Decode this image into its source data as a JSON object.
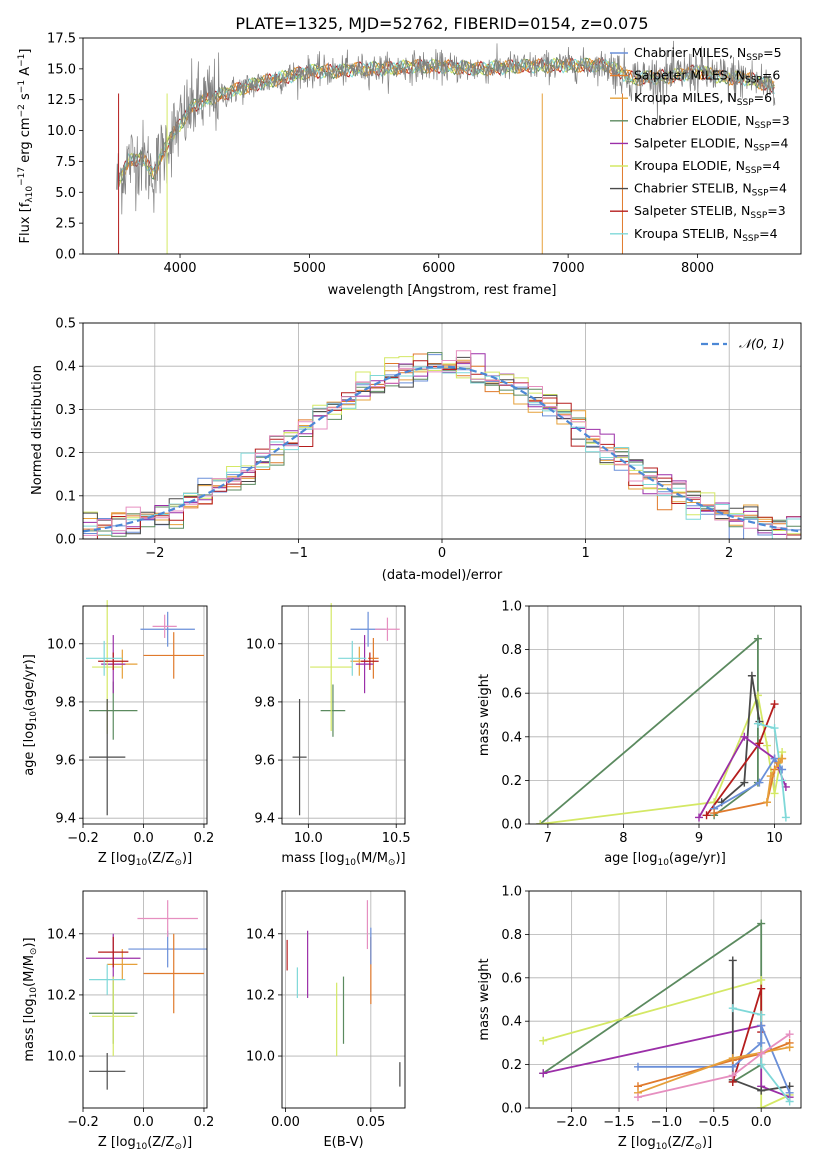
{
  "colors": {
    "chabrier_miles": "#6a8fd9",
    "salpeter_miles": "#e07a2c",
    "kroupa_miles": "#e6a03a",
    "chabrier_elodie": "#5b8a5f",
    "salpeter_elodie": "#9b2fa8",
    "kroupa_elodie": "#d4e865",
    "chabrier_stelib": "#4a4a4a",
    "salpeter_stelib": "#b51d1d",
    "kroupa_stelib": "#7fd8d8",
    "pink": "#e68fc0",
    "normal": "#4c88d6",
    "spectrum": "#808080",
    "grid": "#b0b0b0"
  },
  "chart_data": [
    {
      "id": "spectrum",
      "type": "line",
      "title": "PLATE=1325, MJD=52762, FIBERID=0154, z=0.075",
      "xlabel": "wavelength [Angstrom, rest frame]",
      "ylabel_parts": [
        "Flux [f",
        "λ",
        "10",
        "−17",
        " erg cm",
        "−2",
        " s",
        "−1",
        " A",
        "−1",
        "]"
      ],
      "xlim": [
        3250,
        8800
      ],
      "ylim": [
        0,
        17.5
      ],
      "xticks": [
        4000,
        5000,
        6000,
        7000,
        8000
      ],
      "yticks": [
        0.0,
        2.5,
        5.0,
        7.5,
        10.0,
        12.5,
        15.0,
        17.5
      ],
      "x_tick_labels": [
        "4000",
        "5000",
        "6000",
        "7000",
        "8000"
      ],
      "y_tick_labels": [
        "0.0",
        "2.5",
        "5.0",
        "7.5",
        "10.0",
        "12.5",
        "15.0",
        "17.5"
      ],
      "continuum": {
        "x": [
          3500,
          3600,
          3700,
          3800,
          3900,
          4000,
          4100,
          4200,
          4400,
          4600,
          4800,
          5000,
          5200,
          5400,
          5600,
          5800,
          6000,
          6300,
          6600,
          7000,
          7300,
          7500,
          7800,
          8000,
          8200,
          8400,
          8600
        ],
        "y": [
          5.5,
          7.5,
          7.8,
          6.5,
          9.0,
          10.5,
          12.0,
          12.5,
          13.2,
          13.8,
          14.3,
          14.8,
          14.8,
          15.0,
          15.0,
          15.2,
          15.2,
          15.0,
          15.2,
          15.3,
          15.3,
          14.2,
          14.4,
          14.8,
          14.3,
          14.2,
          13.5
        ]
      },
      "legend": [
        {
          "name": "Chabrier MILES",
          "n": "5",
          "color_key": "chabrier_miles"
        },
        {
          "name": "Salpeter MILES",
          "n": "6",
          "color_key": "salpeter_miles"
        },
        {
          "name": "Kroupa MILES",
          "n": "6",
          "color_key": "kroupa_miles"
        },
        {
          "name": "Chabrier ELODIE",
          "n": "3",
          "color_key": "chabrier_elodie"
        },
        {
          "name": "Salpeter ELODIE",
          "n": "4",
          "color_key": "salpeter_elodie"
        },
        {
          "name": "Kroupa ELODIE",
          "n": "4",
          "color_key": "kroupa_elodie"
        },
        {
          "name": "Chabrier STELIB",
          "n": "4",
          "color_key": "chabrier_stelib"
        },
        {
          "name": "Salpeter STELIB",
          "n": "3",
          "color_key": "salpeter_stelib"
        },
        {
          "name": "Kroupa STELIB",
          "n": "4",
          "color_key": "kroupa_stelib"
        }
      ],
      "nssp_prefix": "N",
      "nssp_sub": "SSP"
    },
    {
      "id": "residuals",
      "type": "histogram",
      "xlabel": "(data-model)/error",
      "ylabel": "Normed distribution",
      "xlim": [
        -2.5,
        2.5
      ],
      "ylim": [
        0,
        0.5
      ],
      "xticks": [
        -2,
        -1,
        0,
        1,
        2
      ],
      "yticks": [
        0.0,
        0.1,
        0.2,
        0.3,
        0.4,
        0.5
      ],
      "x_tick_labels": [
        "−2",
        "−1",
        "0",
        "1",
        "2"
      ],
      "y_tick_labels": [
        "0.0",
        "0.1",
        "0.2",
        "0.3",
        "0.4",
        "0.5"
      ],
      "bin_width": 0.1,
      "legend_label": "𝒩(0, 1)"
    },
    {
      "id": "age_vs_Z",
      "type": "errorbar",
      "xlabel_parts": [
        "Z [log",
        "10",
        "(Z/Z",
        "⊙",
        ")]"
      ],
      "ylabel_parts": [
        "age  [log",
        "10",
        "(age/yr)]"
      ],
      "xlim": [
        -0.2,
        0.21
      ],
      "ylim": [
        9.38,
        10.13
      ],
      "xticks": [
        -0.2,
        0.0,
        0.2
      ],
      "yticks": [
        9.4,
        9.6,
        9.8,
        10.0
      ],
      "x_tick_labels": [
        "−0.2",
        "0.0",
        "0.2"
      ],
      "y_tick_labels": [
        "9.4",
        "9.6",
        "9.8",
        "10.0"
      ],
      "points": [
        {
          "c": "chabrier_miles",
          "x": 0.08,
          "xe": 0.09,
          "y": 10.05,
          "ye": 0.06
        },
        {
          "c": "salpeter_miles",
          "x": 0.1,
          "xe": 0.1,
          "y": 9.96,
          "ye": 0.08
        },
        {
          "c": "kroupa_miles",
          "x": -0.07,
          "xe": 0.05,
          "y": 9.93,
          "ye": 0.05
        },
        {
          "c": "chabrier_elodie",
          "x": -0.1,
          "xe": 0.08,
          "y": 9.77,
          "ye": 0.1
        },
        {
          "c": "salpeter_elodie",
          "x": -0.1,
          "xe": 0.04,
          "y": 9.93,
          "ye": 0.1
        },
        {
          "c": "kroupa_elodie",
          "x": -0.12,
          "xe": 0.05,
          "y": 9.92,
          "ye": 0.23
        },
        {
          "c": "chabrier_stelib",
          "x": -0.12,
          "xe": 0.06,
          "y": 9.61,
          "ye": 0.2
        },
        {
          "c": "salpeter_stelib",
          "x": -0.1,
          "xe": 0.05,
          "y": 9.94,
          "ye": 0.03
        },
        {
          "c": "kroupa_stelib",
          "x": -0.13,
          "xe": 0.06,
          "y": 9.95,
          "ye": 0.06
        },
        {
          "c": "pink",
          "x": 0.07,
          "xe": 0.04,
          "y": 10.06,
          "ye": 0.04
        }
      ]
    },
    {
      "id": "age_vs_mass",
      "type": "errorbar",
      "xlabel_parts": [
        "mass [log",
        "10",
        "(M/M",
        "⊙",
        ")]"
      ],
      "ylabel_parts": [],
      "xlim": [
        9.85,
        10.55
      ],
      "ylim": [
        9.38,
        10.13
      ],
      "xticks": [
        10.0,
        10.5
      ],
      "yticks": [
        9.4,
        9.6,
        9.8,
        10.0
      ],
      "x_tick_labels": [
        "10.0",
        "10.5"
      ],
      "y_tick_labels": [
        "9.4",
        "9.6",
        "9.8",
        "10.0"
      ],
      "points": [
        {
          "c": "chabrier_miles",
          "x": 10.34,
          "xe": 0.1,
          "y": 10.05,
          "ye": 0.06
        },
        {
          "c": "salpeter_miles",
          "x": 10.37,
          "xe": 0.03,
          "y": 9.95,
          "ye": 0.07
        },
        {
          "c": "kroupa_miles",
          "x": 10.29,
          "xe": 0.05,
          "y": 9.94,
          "ye": 0.05
        },
        {
          "c": "chabrier_elodie",
          "x": 10.14,
          "xe": 0.07,
          "y": 9.77,
          "ye": 0.09
        },
        {
          "c": "salpeter_elodie",
          "x": 10.32,
          "xe": 0.05,
          "y": 9.93,
          "ye": 0.1
        },
        {
          "c": "kroupa_elodie",
          "x": 10.13,
          "xe": 0.12,
          "y": 9.92,
          "ye": 0.22
        },
        {
          "c": "chabrier_stelib",
          "x": 9.95,
          "xe": 0.04,
          "y": 9.61,
          "ye": 0.2
        },
        {
          "c": "salpeter_stelib",
          "x": 10.35,
          "xe": 0.05,
          "y": 9.94,
          "ye": 0.03
        },
        {
          "c": "kroupa_stelib",
          "x": 10.25,
          "xe": 0.08,
          "y": 9.95,
          "ye": 0.06
        },
        {
          "c": "pink",
          "x": 10.45,
          "xe": 0.07,
          "y": 10.05,
          "ye": 0.04
        }
      ]
    },
    {
      "id": "mass_vs_Z",
      "type": "errorbar",
      "xlabel_parts": [
        "Z [log",
        "10",
        "(Z/Z",
        "⊙",
        ")]"
      ],
      "ylabel_parts": [
        "mass [log",
        "10",
        "(M/M",
        "⊙",
        ")]"
      ],
      "xlim": [
        -0.2,
        0.21
      ],
      "ylim": [
        9.83,
        10.54
      ],
      "xticks": [
        -0.2,
        0.0,
        0.2
      ],
      "yticks": [
        10.0,
        10.2,
        10.4
      ],
      "x_tick_labels": [
        "−0.2",
        "0.0",
        "0.2"
      ],
      "y_tick_labels": [
        "10.0",
        "10.2",
        "10.4"
      ],
      "points": [
        {
          "c": "chabrier_miles",
          "x": 0.08,
          "xe": 0.13,
          "y": 10.35,
          "ye": 0.06
        },
        {
          "c": "salpeter_miles",
          "x": 0.1,
          "xe": 0.1,
          "y": 10.27,
          "ye": 0.13
        },
        {
          "c": "kroupa_miles",
          "x": -0.07,
          "xe": 0.05,
          "y": 10.3,
          "ye": 0.05
        },
        {
          "c": "chabrier_elodie",
          "x": -0.1,
          "xe": 0.08,
          "y": 10.14,
          "ye": 0.1
        },
        {
          "c": "salpeter_elodie",
          "x": -0.1,
          "xe": 0.09,
          "y": 10.32,
          "ye": 0.08
        },
        {
          "c": "kroupa_elodie",
          "x": -0.1,
          "xe": 0.07,
          "y": 10.13,
          "ye": 0.13
        },
        {
          "c": "chabrier_stelib",
          "x": -0.12,
          "xe": 0.06,
          "y": 9.95,
          "ye": 0.06
        },
        {
          "c": "salpeter_stelib",
          "x": -0.1,
          "xe": 0.05,
          "y": 10.34,
          "ye": 0.05
        },
        {
          "c": "kroupa_stelib",
          "x": -0.12,
          "xe": 0.06,
          "y": 10.25,
          "ye": 0.05
        },
        {
          "c": "pink",
          "x": 0.08,
          "xe": 0.1,
          "y": 10.45,
          "ye": 0.06
        }
      ]
    },
    {
      "id": "mass_vs_ebv",
      "type": "errorbar",
      "xlabel_parts": [
        "E(B-V)"
      ],
      "ylabel_parts": [],
      "xlim": [
        -0.002,
        0.07
      ],
      "ylim": [
        9.83,
        10.54
      ],
      "xticks": [
        0.0,
        0.05
      ],
      "yticks": [
        10.0,
        10.2,
        10.4
      ],
      "x_tick_labels": [
        "0.00",
        "0.05"
      ],
      "y_tick_labels": [
        "10.0",
        "10.2",
        "10.4"
      ],
      "points": [
        {
          "c": "salpeter_stelib",
          "x": 0.001,
          "xe": 0,
          "y": 10.33,
          "ye": 0.05
        },
        {
          "c": "kroupa_stelib",
          "x": 0.007,
          "xe": 0,
          "y": 10.24,
          "ye": 0.05
        },
        {
          "c": "salpeter_elodie",
          "x": 0.013,
          "xe": 0,
          "y": 10.3,
          "ye": 0.11
        },
        {
          "c": "kroupa_elodie",
          "x": 0.03,
          "xe": 0,
          "y": 10.12,
          "ye": 0.12
        },
        {
          "c": "chabrier_elodie",
          "x": 0.034,
          "xe": 0,
          "y": 10.15,
          "ye": 0.11
        },
        {
          "c": "pink",
          "x": 0.048,
          "xe": 0,
          "y": 10.43,
          "ye": 0.08
        },
        {
          "c": "salpeter_miles",
          "x": 0.05,
          "xe": 0,
          "y": 10.28,
          "ye": 0.11
        },
        {
          "c": "chabrier_miles",
          "x": 0.05,
          "xe": 0,
          "y": 10.36,
          "ye": 0.06
        },
        {
          "c": "chabrier_stelib",
          "x": 0.067,
          "xe": 0,
          "y": 9.94,
          "ye": 0.04
        }
      ]
    },
    {
      "id": "weight_vs_age",
      "type": "line",
      "xlabel_parts": [
        "age  [log",
        "10",
        "(age/yr)]"
      ],
      "ylabel": "mass weight",
      "xlim": [
        6.75,
        10.35
      ],
      "ylim": [
        0,
        1
      ],
      "xticks": [
        7,
        8,
        9,
        10
      ],
      "yticks": [
        0.0,
        0.2,
        0.4,
        0.6,
        0.8,
        1.0
      ],
      "x_tick_labels": [
        "7",
        "8",
        "9",
        "10"
      ],
      "y_tick_labels": [
        "0.0",
        "0.2",
        "0.4",
        "0.6",
        "0.8",
        "1.0"
      ],
      "series": [
        {
          "c": "chabrier_elodie",
          "x": [
            6.9,
            9.78,
            9.78,
            9.2
          ],
          "y": [
            0.0,
            0.85,
            0.19,
            0.04
          ]
        },
        {
          "c": "kroupa_elodie",
          "x": [
            6.9,
            9.2,
            9.78,
            9.9,
            10.0,
            10.1
          ],
          "y": [
            0.0,
            0.1,
            0.59,
            0.36,
            0.14,
            0.33
          ]
        },
        {
          "c": "chabrier_stelib",
          "x": [
            9.3,
            9.6,
            9.7,
            9.8
          ],
          "y": [
            0.1,
            0.19,
            0.68,
            0.47
          ]
        },
        {
          "c": "salpeter_stelib",
          "x": [
            9.1,
            9.8,
            10.0
          ],
          "y": [
            0.04,
            0.37,
            0.55
          ]
        },
        {
          "c": "salpeter_elodie",
          "x": [
            9.0,
            9.6,
            10.0,
            10.15
          ],
          "y": [
            0.03,
            0.4,
            0.3,
            0.17
          ]
        },
        {
          "c": "kroupa_stelib",
          "x": [
            9.78,
            10.0,
            10.1,
            10.15
          ],
          "y": [
            0.46,
            0.44,
            0.2,
            0.03
          ]
        },
        {
          "c": "chabrier_miles",
          "x": [
            9.2,
            9.8,
            10.0,
            10.1
          ],
          "y": [
            0.07,
            0.19,
            0.3,
            0.25
          ]
        },
        {
          "c": "salpeter_miles",
          "x": [
            9.2,
            9.9,
            10.0,
            10.1
          ],
          "y": [
            0.05,
            0.1,
            0.25,
            0.3
          ]
        },
        {
          "c": "kroupa_miles",
          "x": [
            9.9,
            9.95,
            10.05,
            10.1
          ],
          "y": [
            0.1,
            0.22,
            0.28,
            0.3
          ]
        }
      ]
    },
    {
      "id": "weight_vs_Z",
      "type": "line",
      "xlabel_parts": [
        "Z [log",
        "10",
        "(Z/Z",
        "⊙",
        ")]"
      ],
      "ylabel": "mass weight",
      "xlim": [
        -2.45,
        0.42
      ],
      "ylim": [
        0,
        1
      ],
      "xticks": [
        -2.0,
        -1.5,
        -1.0,
        -0.5,
        0.0
      ],
      "yticks": [
        0.0,
        0.2,
        0.4,
        0.6,
        0.8,
        1.0
      ],
      "x_tick_labels": [
        "−2.0",
        "−1.5",
        "−1.0",
        "−0.5",
        "0.0"
      ],
      "y_tick_labels": [
        "0.0",
        "0.2",
        "0.4",
        "0.6",
        "0.8",
        "1.0"
      ],
      "series": [
        {
          "c": "chabrier_elodie",
          "x": [
            -2.3,
            0.0,
            0.0,
            -0.3
          ],
          "y": [
            0.16,
            0.85,
            0.2,
            0.12
          ]
        },
        {
          "c": "kroupa_elodie",
          "x": [
            -2.3,
            0.0,
            0.0,
            0.3
          ],
          "y": [
            0.31,
            0.59,
            0.0,
            0.06
          ]
        },
        {
          "c": "salpeter_elodie",
          "x": [
            -2.3,
            0.0,
            0.0,
            0.3
          ],
          "y": [
            0.16,
            0.38,
            0.1,
            0.05
          ]
        },
        {
          "c": "chabrier_stelib",
          "x": [
            -0.3,
            -0.3,
            0.0,
            0.3
          ],
          "y": [
            0.68,
            0.13,
            0.08,
            0.1
          ]
        },
        {
          "c": "salpeter_stelib",
          "x": [
            -0.3,
            0.0,
            0.0
          ],
          "y": [
            0.12,
            0.55,
            0.35
          ]
        },
        {
          "c": "kroupa_stelib",
          "x": [
            -0.3,
            0.0,
            0.0,
            0.3
          ],
          "y": [
            0.46,
            0.43,
            0.2,
            0.03
          ]
        },
        {
          "c": "chabrier_miles",
          "x": [
            -1.3,
            -0.3,
            0.0,
            0.0,
            0.3
          ],
          "y": [
            0.19,
            0.19,
            0.3,
            0.38,
            0.07
          ]
        },
        {
          "c": "salpeter_miles",
          "x": [
            -1.3,
            -0.3,
            0.0,
            0.3
          ],
          "y": [
            0.1,
            0.22,
            0.25,
            0.3
          ]
        },
        {
          "c": "kroupa_miles",
          "x": [
            -1.3,
            -0.3,
            0.3
          ],
          "y": [
            0.07,
            0.23,
            0.28
          ]
        },
        {
          "c": "pink",
          "x": [
            -1.3,
            -0.3,
            0.0,
            0.3
          ],
          "y": [
            0.05,
            0.15,
            0.25,
            0.34
          ]
        }
      ]
    }
  ]
}
